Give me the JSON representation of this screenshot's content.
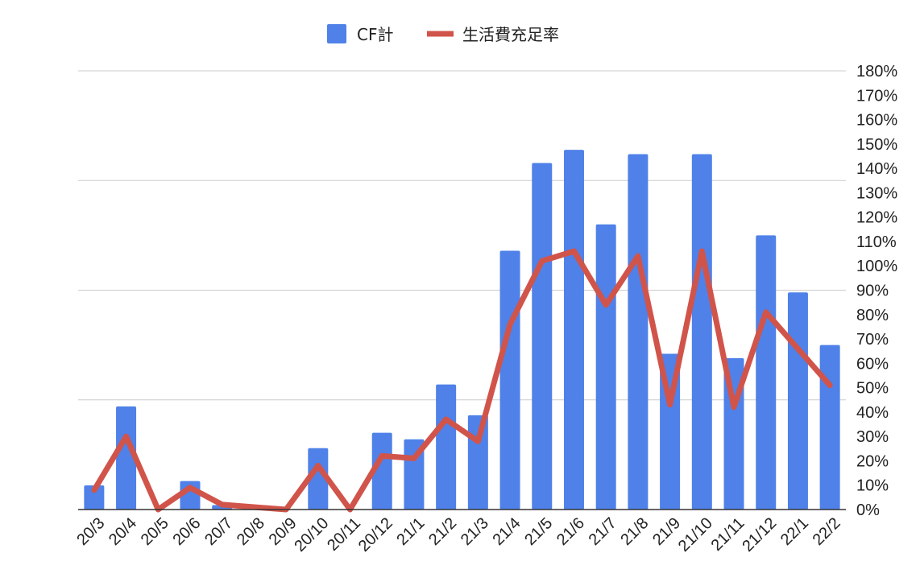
{
  "chart_data": {
    "type": "bar+line",
    "categories": [
      "20/3",
      "20/4",
      "20/5",
      "20/6",
      "20/7",
      "20/8",
      "20/9",
      "20/10",
      "20/11",
      "20/12",
      "21/1",
      "21/2",
      "21/3",
      "21/4",
      "21/5",
      "21/6",
      "21/7",
      "21/8",
      "21/9",
      "21/10",
      "21/11",
      "21/12",
      "22/1",
      "22/2"
    ],
    "series": [
      {
        "name": "CF計",
        "type": "bar",
        "color": "#4f81e8",
        "values": [
          11,
          47,
          0,
          13,
          2,
          1,
          0,
          28,
          0,
          35,
          32,
          57,
          43,
          118,
          158,
          164,
          130,
          162,
          71,
          162,
          69,
          125,
          99,
          75
        ]
      },
      {
        "name": "生活費充足率",
        "type": "line",
        "axis": "right",
        "color": "#d1544a",
        "values": [
          8,
          30,
          0,
          9,
          2,
          1,
          0,
          18,
          0,
          22,
          21,
          37,
          28,
          76,
          102,
          106,
          84,
          104,
          43,
          106,
          42,
          81,
          66,
          51
        ]
      }
    ],
    "left_axis": {
      "min": 0,
      "max": 200,
      "gridlines": [
        0,
        50,
        100,
        150,
        200
      ],
      "labels_shown": false
    },
    "right_axis": {
      "min": 0,
      "max": 180,
      "step": 10,
      "tick_labels": [
        "0%",
        "10%",
        "20%",
        "30%",
        "40%",
        "50%",
        "60%",
        "70%",
        "80%",
        "90%",
        "100%",
        "110%",
        "120%",
        "130%",
        "140%",
        "150%",
        "160%",
        "170%",
        "180%"
      ]
    },
    "legend": {
      "position": "top",
      "items": [
        "CF計",
        "生活費充足率"
      ]
    },
    "grid": true,
    "title": ""
  }
}
